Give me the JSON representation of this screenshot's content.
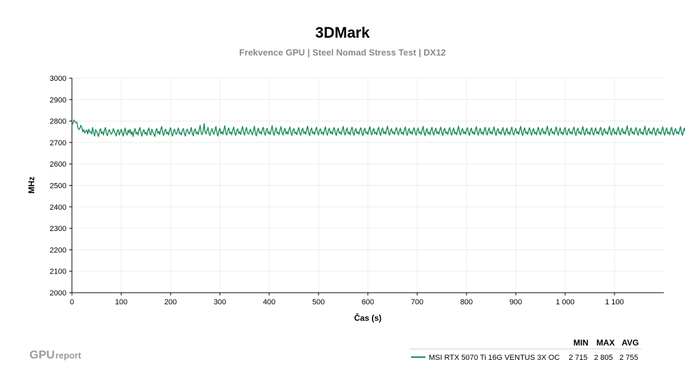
{
  "brand": {
    "main": "GPU",
    "sub": "report"
  },
  "chart_data": {
    "type": "line",
    "title": "3DMark",
    "subtitle": "Frekvence GPU | Steel Nomad Stress Test | DX12",
    "xlabel": "Čas (s)",
    "ylabel": "MHz",
    "xlim": [
      0,
      1200
    ],
    "ylim": [
      2000,
      3000
    ],
    "x_ticks": [
      0,
      100,
      200,
      300,
      400,
      500,
      600,
      700,
      800,
      900,
      1000,
      1100
    ],
    "x_tick_labels": [
      "0",
      "100",
      "200",
      "300",
      "400",
      "500",
      "600",
      "700",
      "800",
      "900",
      "1 000",
      "1 100"
    ],
    "y_ticks": [
      2000,
      2100,
      2200,
      2300,
      2400,
      2500,
      2600,
      2700,
      2800,
      2900,
      3000
    ],
    "y_tick_labels": [
      "2000",
      "2100",
      "2200",
      "2300",
      "2400",
      "2500",
      "2600",
      "2700",
      "2800",
      "2900",
      "3000"
    ],
    "grid": true,
    "legend": {
      "placement": "bottom-right",
      "headers": [
        "MIN",
        "MAX",
        "AVG"
      ]
    },
    "series": [
      {
        "name": "MSI RTX 5070 Ti 16G VENTUS 3X OC",
        "color": "#1a8a5a",
        "min": "2 715",
        "max": "2 805",
        "avg": "2 755",
        "x_start": 0,
        "x_step": 2,
        "values": [
          2780,
          2790,
          2805,
          2798,
          2792,
          2795,
          2770,
          2760,
          2765,
          2780,
          2770,
          2750,
          2760,
          2745,
          2752,
          2758,
          2740,
          2762,
          2748,
          2750,
          2740,
          2770,
          2745,
          2730,
          2760,
          2752,
          2740,
          2728,
          2755,
          2765,
          2742,
          2750,
          2735,
          2758,
          2770,
          2740,
          2732,
          2752,
          2760,
          2745,
          2738,
          2748,
          2765,
          2752,
          2741,
          2730,
          2755,
          2760,
          2735,
          2748,
          2762,
          2745,
          2730,
          2753,
          2768,
          2740,
          2735,
          2758,
          2745,
          2762,
          2738,
          2750,
          2728,
          2752,
          2765,
          2740,
          2748,
          2735,
          2758,
          2770,
          2745,
          2730,
          2752,
          2760,
          2740,
          2748,
          2733,
          2757,
          2768,
          2742,
          2735,
          2762,
          2750,
          2740,
          2728,
          2755,
          2765,
          2742,
          2752,
          2737,
          2760,
          2775,
          2745,
          2732,
          2755,
          2762,
          2740,
          2748,
          2735,
          2758,
          2769,
          2741,
          2730,
          2752,
          2762,
          2744,
          2738,
          2754,
          2768,
          2740,
          2746,
          2735,
          2758,
          2765,
          2742,
          2730,
          2756,
          2762,
          2748,
          2739,
          2752,
          2770,
          2744,
          2731,
          2756,
          2764,
          2741,
          2749,
          2737,
          2760,
          2780,
          2745,
          2736,
          2755,
          2788,
          2748,
          2740,
          2756,
          2770,
          2742,
          2733,
          2752,
          2765,
          2748,
          2738,
          2757,
          2775,
          2746,
          2730,
          2754,
          2766,
          2741,
          2750,
          2738,
          2760,
          2778,
          2744,
          2735,
          2758,
          2768,
          2742,
          2749,
          2736,
          2759,
          2772,
          2745,
          2733,
          2756,
          2764,
          2742,
          2750,
          2737,
          2759,
          2775,
          2748,
          2734,
          2755,
          2770,
          2744,
          2739,
          2751,
          2762,
          2745,
          2736,
          2757,
          2776,
          2742,
          2731,
          2756,
          2767,
          2744,
          2750,
          2738,
          2760,
          2771,
          2744,
          2734,
          2757,
          2766,
          2742,
          2749,
          2737,
          2760,
          2778,
          2746,
          2733,
          2755,
          2769,
          2743,
          2748,
          2736,
          2759,
          2774,
          2744,
          2735,
          2756,
          2766,
          2741,
          2750,
          2738,
          2760,
          2772,
          2745,
          2733,
          2757,
          2765,
          2742,
          2748,
          2736,
          2758,
          2770,
          2744,
          2734,
          2755,
          2767,
          2743,
          2750,
          2738,
          2760,
          2776,
          2746,
          2732,
          2756,
          2768,
          2742,
          2749,
          2737,
          2759,
          2771,
          2745,
          2735,
          2757,
          2764,
          2741,
          2748,
          2736,
          2759,
          2773,
          2744,
          2734,
          2756,
          2767,
          2742,
          2750,
          2738,
          2760,
          2770,
          2745,
          2733,
          2755,
          2766,
          2743,
          2749,
          2737,
          2758,
          2775,
          2746,
          2735,
          2756,
          2768,
          2741,
          2748,
          2736,
          2759,
          2772,
          2744,
          2734,
          2757,
          2765,
          2742,
          2750,
          2738,
          2760,
          2769,
          2745,
          2732,
          2756,
          2767,
          2743,
          2749,
          2737,
          2758,
          2774,
          2746,
          2735,
          2755,
          2766,
          2741,
          2748,
          2736,
          2759,
          2771,
          2744,
          2733,
          2757,
          2768,
          2742,
          2750,
          2738,
          2760,
          2776,
          2745,
          2734,
          2756,
          2765,
          2743,
          2749,
          2737,
          2758,
          2770,
          2746,
          2735,
          2755,
          2767,
          2741,
          2748,
          2736,
          2759,
          2773,
          2744,
          2733,
          2756,
          2766,
          2742,
          2750,
          2738,
          2760,
          2769,
          2745,
          2734,
          2757,
          2768,
          2743,
          2749,
          2737,
          2758,
          2775,
          2746,
          2732,
          2755,
          2765,
          2741,
          2748,
          2736,
          2759,
          2771,
          2744,
          2735,
          2756,
          2767,
          2742,
          2750,
          2738,
          2760,
          2772,
          2745,
          2733,
          2757,
          2766,
          2743,
          2749,
          2737,
          2758,
          2770,
          2746,
          2734,
          2755,
          2768,
          2741,
          2748,
          2736,
          2759,
          2776,
          2744,
          2735,
          2756,
          2765,
          2742,
          2750,
          2738,
          2760,
          2769,
          2745,
          2733,
          2757,
          2767,
          2743,
          2749,
          2737,
          2758,
          2774,
          2746,
          2734,
          2755,
          2766,
          2741,
          2748,
          2736,
          2759,
          2771,
          2744,
          2735,
          2756,
          2768,
          2742,
          2750,
          2738,
          2760,
          2773,
          2745,
          2733,
          2757,
          2765,
          2743,
          2749,
          2737,
          2758,
          2770,
          2746,
          2734,
          2755,
          2767,
          2741,
          2748,
          2736,
          2759,
          2772,
          2744,
          2735,
          2756,
          2766,
          2742,
          2750,
          2738,
          2760,
          2775,
          2745,
          2733,
          2757,
          2768,
          2743,
          2749,
          2737,
          2758,
          2769,
          2746,
          2734,
          2755,
          2765,
          2741,
          2748,
          2736,
          2759,
          2771,
          2744,
          2735,
          2756,
          2767,
          2742,
          2750,
          2738,
          2760,
          2776,
          2745,
          2733,
          2757,
          2766,
          2743,
          2749,
          2737,
          2758,
          2773,
          2746,
          2734,
          2755,
          2768,
          2741,
          2748,
          2736,
          2759,
          2770,
          2744,
          2735,
          2756,
          2765,
          2742,
          2750,
          2738,
          2760,
          2772,
          2745,
          2733,
          2757,
          2767,
          2743,
          2749,
          2737,
          2758,
          2774,
          2746,
          2734,
          2755,
          2766,
          2741,
          2748,
          2736,
          2759,
          2769,
          2744,
          2735,
          2756,
          2768,
          2742,
          2750,
          2738,
          2760,
          2771,
          2745,
          2733,
          2757,
          2765,
          2743,
          2749,
          2737,
          2758,
          2775,
          2746,
          2734,
          2755,
          2767,
          2741,
          2748,
          2736,
          2759,
          2772,
          2744,
          2735,
          2756,
          2766,
          2742,
          2750,
          2738,
          2760,
          2778,
          2745,
          2733,
          2757,
          2768,
          2743,
          2749,
          2737,
          2758,
          2770,
          2746,
          2734,
          2755,
          2765,
          2741,
          2748,
          2736,
          2759,
          2776,
          2744,
          2735,
          2756,
          2767,
          2742,
          2750,
          2738,
          2760,
          2769,
          2745,
          2733,
          2757,
          2766,
          2743,
          2749,
          2737,
          2758,
          2773,
          2746,
          2734,
          2755,
          2768,
          2741,
          2748,
          2736,
          2759,
          2771,
          2744,
          2735,
          2756,
          2765,
          2742,
          2750,
          2738,
          2760,
          2774,
          2745,
          2733,
          2757,
          2767,
          2743,
          2749,
          2737,
          2758,
          2770,
          2746,
          2734,
          2755,
          2766,
          2741,
          2748,
          2736,
          2759,
          2779,
          2744,
          2735,
          2756,
          2768,
          2742,
          2750,
          2738,
          2760,
          2772,
          2745,
          2733,
          2757,
          2765,
          2743,
          2749
        ]
      }
    ]
  }
}
